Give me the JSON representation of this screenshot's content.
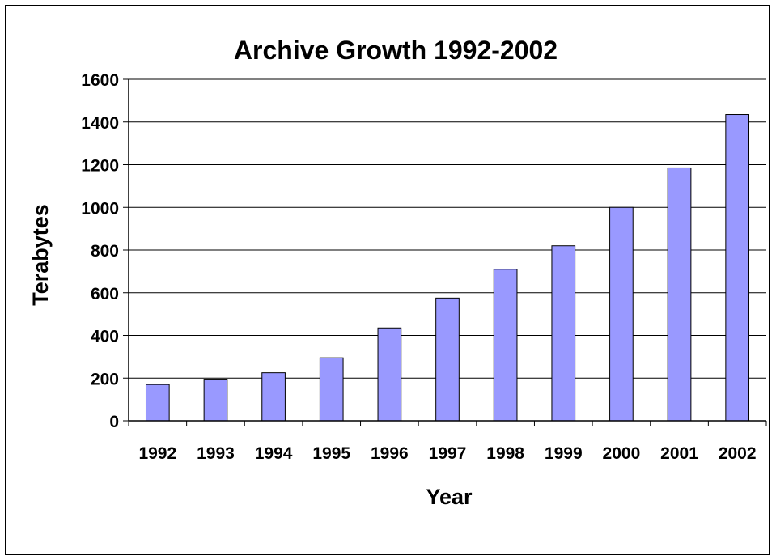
{
  "chart_data": {
    "type": "bar",
    "title": "Archive Growth 1992-2002",
    "xlabel": "Year",
    "ylabel": "Terabytes",
    "categories": [
      "1992",
      "1993",
      "1994",
      "1995",
      "1996",
      "1997",
      "1998",
      "1999",
      "2000",
      "2001",
      "2002"
    ],
    "values": [
      170,
      195,
      225,
      295,
      435,
      575,
      710,
      820,
      1000,
      1185,
      1435
    ],
    "ylim": [
      0,
      1600
    ],
    "yticks": [
      0,
      200,
      400,
      600,
      800,
      1000,
      1200,
      1400,
      1600
    ],
    "grid": true,
    "legend": "none",
    "colors": {
      "bar_fill": "#9999ff",
      "bar_stroke": "#000000",
      "grid": "#000000"
    }
  }
}
